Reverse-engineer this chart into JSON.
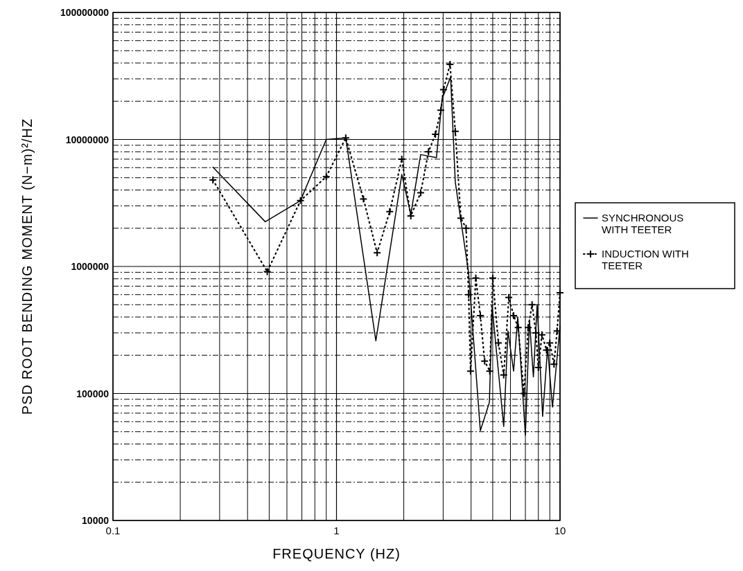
{
  "chart_data": {
    "type": "line",
    "xlabel": "FREQUENCY (HZ)",
    "ylabel": "PSD ROOT BENDING MOMENT (N−m)²/HZ",
    "log": "xy",
    "grid": true,
    "legend": "right",
    "xlim": [
      0.1,
      10
    ],
    "xticks": [
      0.1,
      1,
      10
    ],
    "ylim": [
      10000,
      100000000
    ],
    "yticks": [
      10000,
      100000,
      1000000,
      10000000,
      100000000
    ],
    "series": [
      {
        "name": "SYNCHRONOUS WITH TEETER",
        "color": "#000000",
        "line_style": "solid",
        "marker": "none",
        "x": [
          0.28,
          0.48,
          0.69,
          0.9,
          1.1,
          1.5,
          1.96,
          2.15,
          2.38,
          2.8,
          2.97,
          3.24,
          3.4,
          3.9,
          4.4,
          4.83,
          4.97,
          5.6,
          5.85,
          6.2,
          6.47,
          7.0,
          7.3,
          7.6,
          7.9,
          8.36,
          8.8,
          9.25,
          10
        ],
        "values": [
          6050000,
          2250000,
          3300000,
          10000000,
          10300000,
          260000,
          5300000,
          2570000,
          7600000,
          7200000,
          21000000,
          31000000,
          4600000,
          890000,
          51000,
          85000,
          480000,
          55000,
          310000,
          150000,
          400000,
          47000,
          380000,
          135000,
          500000,
          66000,
          230000,
          78000,
          340000
        ]
      },
      {
        "name": "INDUCTION WITH TEETER",
        "color": "#000000",
        "line_style": "dotted",
        "marker": "cross",
        "x": [
          0.28,
          0.49,
          0.69,
          0.9,
          1.1,
          1.32,
          1.52,
          1.73,
          1.96,
          2.15,
          2.38,
          2.58,
          2.77,
          2.93,
          3.01,
          3.22,
          3.4,
          3.6,
          3.8,
          3.9,
          3.98,
          4.2,
          4.4,
          4.6,
          4.85,
          5.0,
          5.3,
          5.6,
          5.9,
          6.2,
          6.5,
          6.9,
          7.2,
          7.5,
          7.8,
          8.0,
          8.3,
          8.7,
          9.0,
          9.4,
          9.7,
          10
        ],
        "values": [
          4800000,
          910000,
          3300000,
          5100000,
          10300000,
          3400000,
          1280000,
          2700000,
          7000000,
          2500000,
          3800000,
          8000000,
          11000000,
          17000000,
          24700000,
          39000000,
          11600000,
          2400000,
          2000000,
          600000,
          150000,
          810000,
          410000,
          180000,
          150000,
          810000,
          250000,
          140000,
          570000,
          410000,
          330000,
          100000,
          330000,
          500000,
          300000,
          160000,
          290000,
          220000,
          250000,
          170000,
          310000,
          620000
        ]
      }
    ]
  }
}
